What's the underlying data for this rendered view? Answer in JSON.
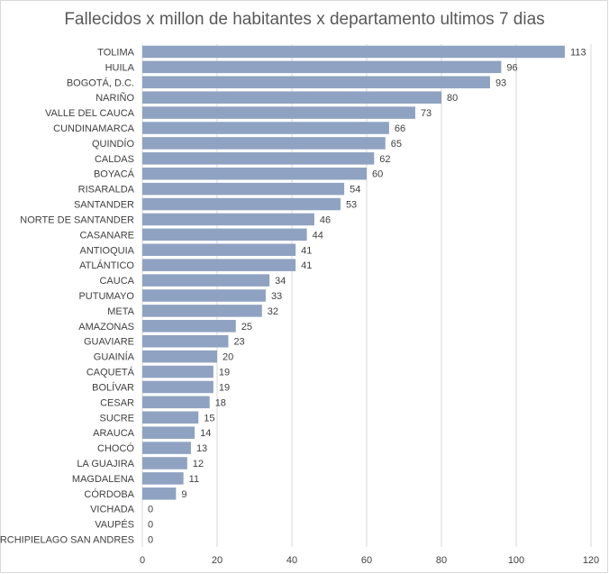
{
  "chart_data": {
    "type": "bar",
    "orientation": "horizontal",
    "title": "Fallecidos x millon de habitantes x departamento ultimos 7 dias",
    "xlabel": "",
    "ylabel": "",
    "xlim": [
      0,
      120
    ],
    "x_ticks": [
      0,
      20,
      40,
      60,
      80,
      100,
      120
    ],
    "grid": true,
    "legend": "none",
    "bar_color": "#8fa2c1",
    "grid_color": "#d9d9d9",
    "categories": [
      "TOLIMA",
      "HUILA",
      "BOGOTÁ, D.C.",
      "NARIÑO",
      "VALLE DEL CAUCA",
      "CUNDINAMARCA",
      "QUINDÍO",
      "CALDAS",
      "BOYACÁ",
      "RISARALDA",
      "SANTANDER",
      "NORTE DE SANTANDER",
      "CASANARE",
      "ANTIOQUIA",
      "ATLÁNTICO",
      "CAUCA",
      "PUTUMAYO",
      "META",
      "AMAZONAS",
      "GUAVIARE",
      "GUAINÍA",
      "CAQUETÁ",
      "BOLÍVAR",
      "CESAR",
      "SUCRE",
      "ARAUCA",
      "CHOCÓ",
      "LA GUAJIRA",
      "MAGDALENA",
      "CÓRDOBA",
      "VICHADA",
      "VAUPÉS",
      "ARCHIPIELAGO SAN ANDRES"
    ],
    "values": [
      113,
      96,
      93,
      80,
      73,
      66,
      65,
      62,
      60,
      54,
      53,
      46,
      44,
      41,
      41,
      34,
      33,
      32,
      25,
      23,
      20,
      19,
      19,
      18,
      15,
      14,
      13,
      12,
      11,
      9,
      0,
      0,
      0
    ]
  }
}
